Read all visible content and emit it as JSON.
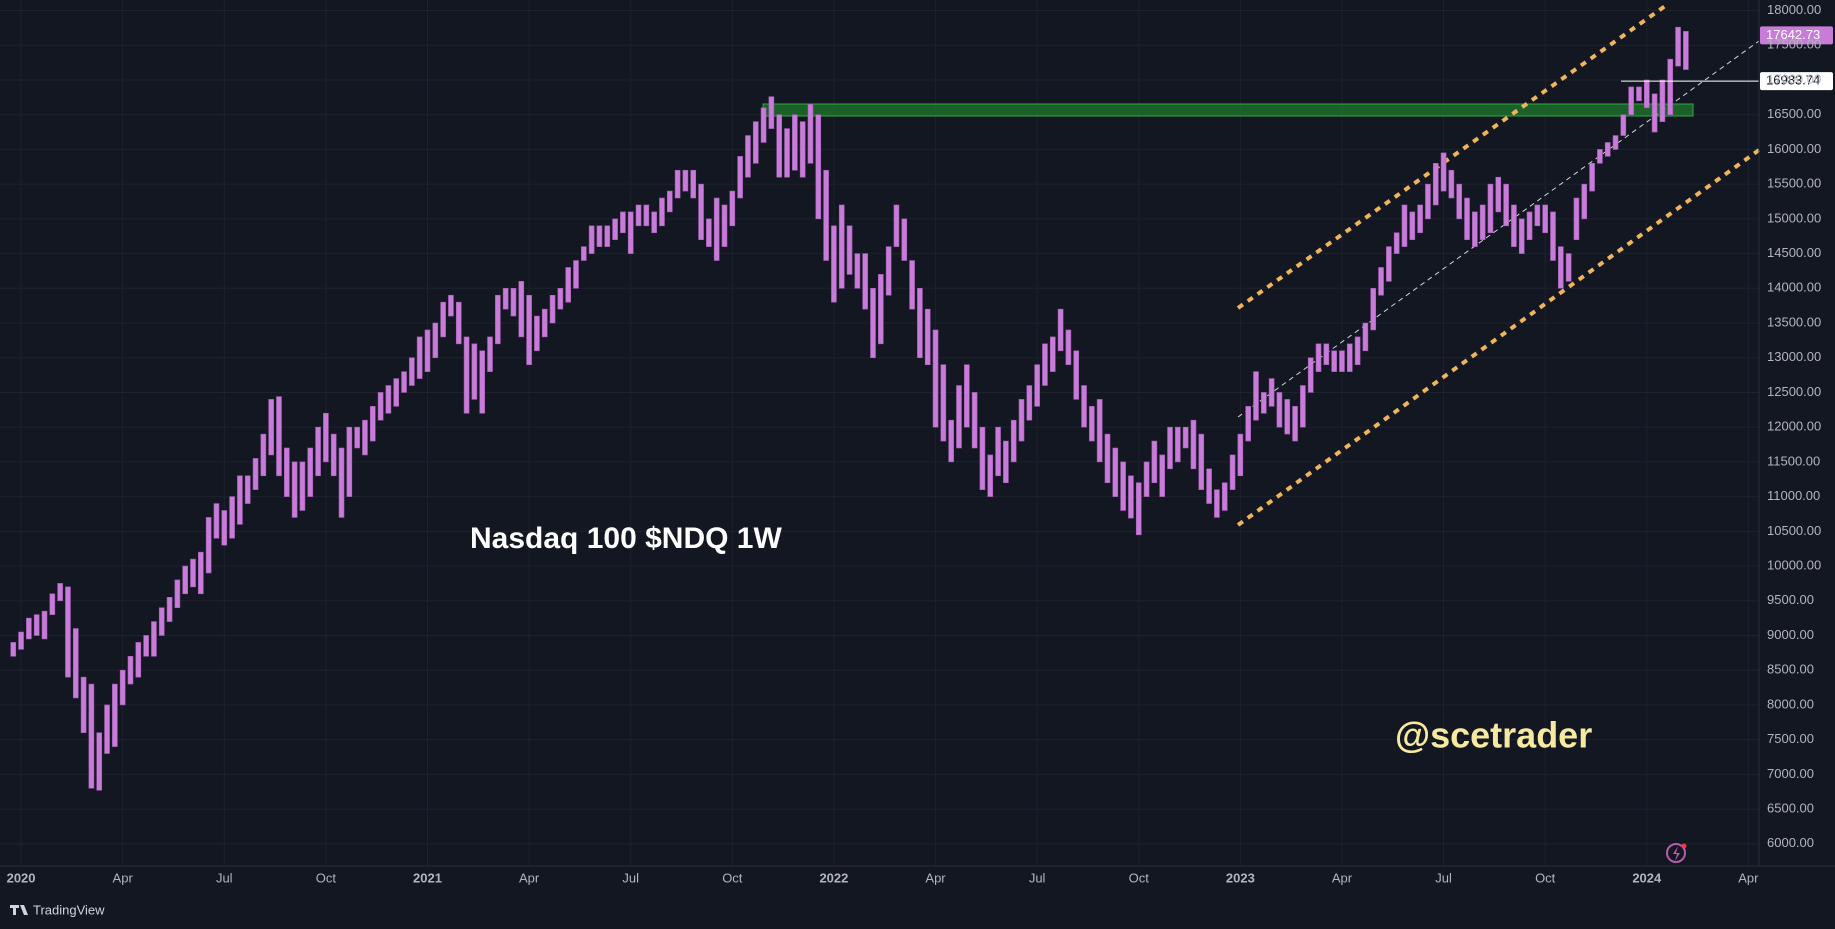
{
  "chart_data": {
    "type": "range_bar",
    "title": "Nasdaq 100 $NDQ 1W",
    "watermark": "@scetrader",
    "brand": "TradingView",
    "color": "#c77dd7",
    "last_price": 17642.73,
    "marked_price": 16983.74,
    "categories": [
      null,
      "2020",
      null,
      null,
      null,
      null,
      null,
      null,
      null,
      null,
      null,
      null,
      null,
      null,
      "Apr",
      null,
      null,
      null,
      null,
      null,
      null,
      null,
      null,
      null,
      null,
      null,
      null,
      "Jul",
      null,
      null,
      null,
      null,
      null,
      null,
      null,
      null,
      null,
      null,
      null,
      null,
      "Oct",
      null,
      null,
      null,
      null,
      null,
      null,
      null,
      null,
      null,
      null,
      null,
      null,
      "2021",
      null,
      null,
      null,
      null,
      null,
      null,
      null,
      null,
      null,
      null,
      null,
      null,
      "Apr",
      null,
      null,
      null,
      null,
      null,
      null,
      null,
      null,
      null,
      null,
      null,
      null,
      "Jul",
      null,
      null,
      null,
      null,
      null,
      null,
      null,
      null,
      null,
      null,
      null,
      null,
      "Oct",
      null,
      null,
      null,
      null,
      null,
      null,
      null,
      null,
      null,
      null,
      null,
      null,
      "2022",
      null,
      null,
      null,
      null,
      null,
      null,
      null,
      null,
      null,
      null,
      null,
      null,
      "Apr",
      null,
      null,
      null,
      null,
      null,
      null,
      null,
      null,
      null,
      null,
      null,
      null,
      "Jul",
      null,
      null,
      null,
      null,
      null,
      null,
      null,
      null,
      null,
      null,
      null,
      null,
      "Oct",
      null,
      null,
      null,
      null,
      null,
      null,
      null,
      null,
      null,
      null,
      null,
      null,
      "2023",
      null,
      null,
      null,
      null,
      null,
      null,
      null,
      null,
      null,
      null,
      null,
      null,
      "Apr",
      null,
      null,
      null,
      null,
      null,
      null,
      null,
      null,
      null,
      null,
      null,
      null,
      "Jul",
      null,
      null,
      null,
      null,
      null,
      null,
      null,
      null,
      null,
      null,
      null,
      null,
      "Oct",
      null,
      null,
      null,
      null,
      null,
      null,
      null,
      null,
      null,
      null,
      null,
      null,
      "2024",
      null,
      null,
      null,
      null,
      null,
      null,
      null,
      null,
      null,
      null,
      null,
      null,
      "Apr",
      null
    ],
    "low": [
      8700,
      8800,
      8950,
      9000,
      8950,
      9300,
      9500,
      8400,
      8100,
      7600,
      6800,
      6770,
      7300,
      7400,
      8000,
      8300,
      8400,
      8700,
      8700,
      9000,
      9200,
      9400,
      9600,
      9700,
      9600,
      9900,
      10400,
      10300,
      10400,
      10600,
      10900,
      11100,
      11300,
      11600,
      11300,
      11000,
      10700,
      10800,
      11000,
      11300,
      11500,
      11300,
      10700,
      11000,
      11700,
      11600,
      11800,
      12100,
      12200,
      12300,
      12500,
      12600,
      12700,
      12800,
      13000,
      13300,
      13600,
      13200,
      12200,
      12400,
      12200,
      12800,
      13200,
      13700,
      13600,
      13300,
      12900,
      13100,
      13300,
      13500,
      13700,
      13800,
      14000,
      14400,
      14500,
      14600,
      14600,
      14700,
      14800,
      14500,
      14900,
      14900,
      14800,
      14900,
      15100,
      15300,
      15400,
      15300,
      14700,
      14600,
      14400,
      14600,
      14900,
      15300,
      15600,
      15800,
      16100,
      16300,
      15600,
      15600,
      15700,
      15600,
      15800,
      15000,
      14400,
      13800,
      14000,
      14200,
      14000,
      13700,
      13000,
      13200,
      13900,
      14600,
      14400,
      13700,
      13000,
      12900,
      12000,
      11800,
      11500,
      11700,
      12000,
      11700,
      11100,
      11000,
      11300,
      11200,
      11500,
      11800,
      12100,
      12300,
      12600,
      12800,
      13100,
      12900,
      12400,
      12000,
      11800,
      11500,
      11200,
      11000,
      10800,
      10690,
      10450,
      11000,
      11200,
      11000,
      11400,
      11500,
      11700,
      11400,
      11100,
      10900,
      10700,
      10800,
      11100,
      11300,
      11800,
      12100,
      12200,
      12300,
      12000,
      11900,
      11800,
      12000,
      12500,
      12800,
      12900,
      12800,
      12800,
      12800,
      12900,
      13100,
      13400,
      13900,
      14100,
      14500,
      14600,
      14700,
      14800,
      15000,
      15200,
      15400,
      15300,
      15000,
      14700,
      14600,
      14700,
      14800,
      15100,
      14900,
      14600,
      14500,
      14700,
      14900,
      14800,
      14400,
      14000,
      14100,
      14700,
      15000,
      15400,
      15800,
      15900,
      16000,
      16200,
      16500,
      16700,
      16600,
      16250,
      16400,
      16500,
      17200,
      17150,
      null,
      null,
      null,
      null,
      null,
      null,
      null,
      null,
      null
    ],
    "high": [
      8900,
      9050,
      9250,
      9300,
      9350,
      9600,
      9750,
      9700,
      9100,
      8400,
      8300,
      7600,
      8000,
      8300,
      8500,
      8700,
      8900,
      9000,
      9200,
      9400,
      9550,
      9800,
      10000,
      10100,
      10200,
      10700,
      10900,
      10800,
      11000,
      11300,
      11300,
      11550,
      11900,
      12400,
      12440,
      11700,
      11500,
      11500,
      11700,
      12000,
      12200,
      11900,
      11700,
      12000,
      12000,
      12100,
      12300,
      12500,
      12600,
      12700,
      12800,
      13000,
      13300,
      13400,
      13500,
      13800,
      13900,
      13800,
      13300,
      13200,
      13100,
      13300,
      13900,
      14000,
      14000,
      14100,
      13900,
      13600,
      13700,
      13900,
      14000,
      14300,
      14400,
      14600,
      14900,
      14900,
      14900,
      15000,
      15100,
      15100,
      15200,
      15200,
      15100,
      15300,
      15400,
      15700,
      15700,
      15700,
      15500,
      15000,
      15300,
      15200,
      15400,
      15900,
      16200,
      16400,
      16600,
      16760,
      16500,
      16300,
      16500,
      16400,
      16650,
      16500,
      15700,
      14900,
      15200,
      14900,
      14500,
      14500,
      14000,
      14200,
      14600,
      15200,
      15000,
      14400,
      14000,
      13700,
      13400,
      12900,
      12100,
      12600,
      12900,
      12500,
      12000,
      11600,
      12000,
      11800,
      12100,
      12400,
      12600,
      12900,
      13200,
      13300,
      13700,
      13400,
      13100,
      12600,
      12300,
      12400,
      11900,
      11700,
      11500,
      11300,
      11200,
      11500,
      11800,
      11600,
      12000,
      12000,
      12000,
      12100,
      11900,
      11400,
      11100,
      11200,
      11600,
      11900,
      12300,
      12800,
      12500,
      12700,
      12500,
      12400,
      12300,
      12600,
      13000,
      13200,
      13200,
      13100,
      13100,
      13200,
      13300,
      13500,
      14000,
      14300,
      14600,
      14800,
      15200,
      15100,
      15200,
      15500,
      15800,
      15950,
      15700,
      15500,
      15300,
      15100,
      15200,
      15500,
      15600,
      15500,
      15200,
      15000,
      15100,
      15200,
      15200,
      15100,
      14600,
      14500,
      15300,
      15500,
      15800,
      16000,
      16100,
      16200,
      16500,
      16900,
      16900,
      17000,
      16800,
      17000,
      17300,
      17760,
      17700,
      null,
      null,
      null,
      null,
      null,
      null,
      null,
      null,
      null
    ],
    "ylim": [
      5680,
      18152
    ],
    "yticks": [
      {
        "value": 6000,
        "label": "6000.00"
      },
      {
        "value": 6500,
        "label": "6500.00"
      },
      {
        "value": 7000,
        "label": "7000.00"
      },
      {
        "value": 7500,
        "label": "7500.00"
      },
      {
        "value": 8000,
        "label": "8000.00"
      },
      {
        "value": 8500,
        "label": "8500.00"
      },
      {
        "value": 9000,
        "label": "9000.00"
      },
      {
        "value": 9500,
        "label": "9500.00"
      },
      {
        "value": 10000,
        "label": "10000.00"
      },
      {
        "value": 10500,
        "label": "10500.00"
      },
      {
        "value": 11000,
        "label": "11000.00"
      },
      {
        "value": 11500,
        "label": "11500.00"
      },
      {
        "value": 12000,
        "label": "12000.00"
      },
      {
        "value": 12500,
        "label": "12500.00"
      },
      {
        "value": 13000,
        "label": "13000.00"
      },
      {
        "value": 13500,
        "label": "13500.00"
      },
      {
        "value": 14000,
        "label": "14000.00"
      },
      {
        "value": 14500,
        "label": "14500.00"
      },
      {
        "value": 15000,
        "label": "15000.00"
      },
      {
        "value": 15500,
        "label": "15500.00"
      },
      {
        "value": 16000,
        "label": "16000.00"
      },
      {
        "value": 16500,
        "label": "16500.00"
      },
      {
        "value": 17000,
        "label": "17000.00"
      },
      {
        "value": 17500,
        "label": "17500.00"
      },
      {
        "value": 18000,
        "label": "18000.00"
      }
    ],
    "grid": true
  }
}
